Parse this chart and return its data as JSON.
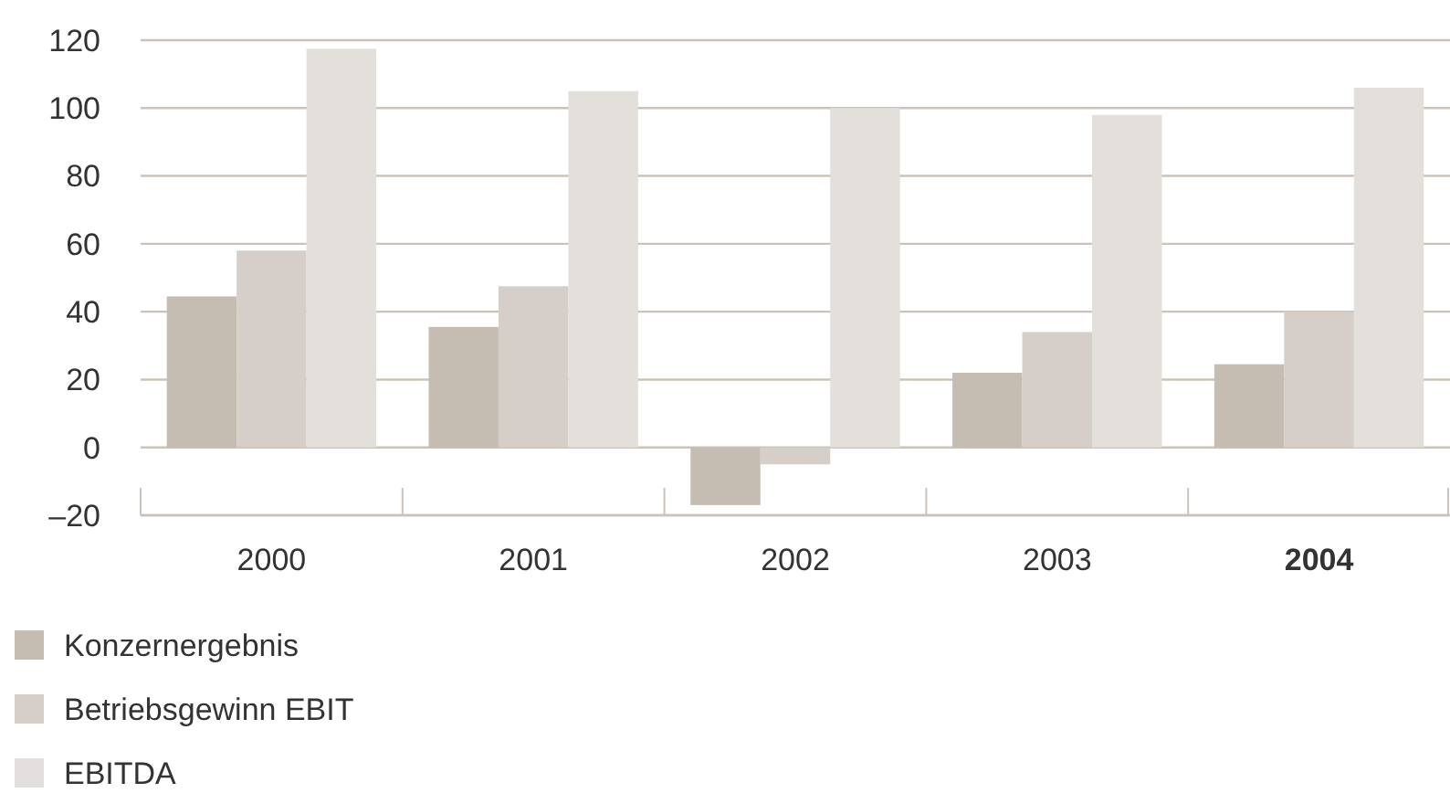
{
  "chart_data": {
    "type": "bar",
    "categories": [
      "2000",
      "2001",
      "2002",
      "2003",
      "2004"
    ],
    "series": [
      {
        "name": "Konzernergebnis",
        "color": "#c6bdb2",
        "values": [
          44.5,
          35.5,
          -17,
          22,
          24.5
        ]
      },
      {
        "name": "Betriebsgewinn EBIT",
        "color": "#d6cec8",
        "values": [
          58,
          47.5,
          -5,
          34,
          40
        ]
      },
      {
        "name": "EBITDA",
        "color": "#e3e0dc",
        "values": [
          117.5,
          105,
          100,
          98,
          106
        ]
      }
    ],
    "ylim": [
      -20,
      120
    ],
    "yticks": [
      {
        "value": -20,
        "label": "–20"
      },
      0,
      20,
      40,
      60,
      80,
      100,
      120
    ],
    "grid": "y",
    "legend": "bottom left"
  }
}
